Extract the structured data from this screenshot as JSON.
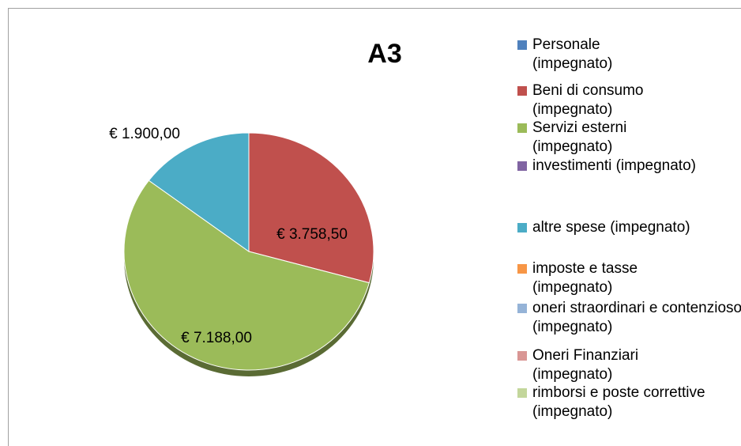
{
  "chart_data": {
    "type": "pie",
    "title": "A3",
    "categories": [
      "Personale (impegnato)",
      "Beni di consumo (impegnato)",
      "Servizi esterni (impegnato)",
      "investimenti (impegnato)",
      "altre spese (impegnato)",
      "imposte e tasse (impegnato)",
      "oneri straordinari e contenzioso (impegnato)",
      "Oneri Finanziari (impegnato)",
      "rimborsi e poste correttive (impegnato)"
    ],
    "values": [
      0,
      3758.5,
      7188,
      0,
      1900,
      0,
      0,
      0,
      0
    ],
    "value_labels": [
      null,
      "€ 3.758,50",
      "€ 7.188,00",
      null,
      "€ 1.900,00",
      null,
      null,
      null,
      null
    ],
    "colors": [
      "#4f81bd",
      "#c0504d",
      "#9bbb59",
      "#8064a2",
      "#4bacc6",
      "#f79646",
      "#95b3d7",
      "#d99694",
      "#c3d69b"
    ],
    "legend": "right"
  }
}
